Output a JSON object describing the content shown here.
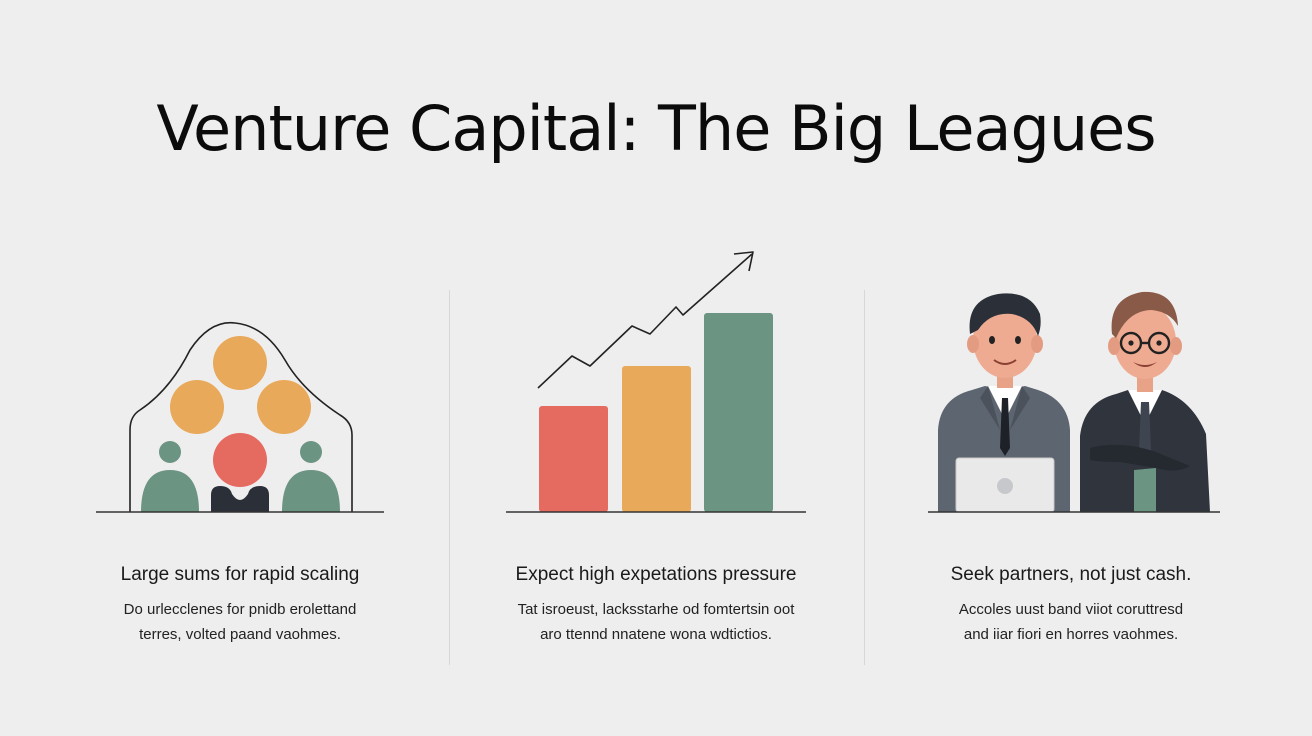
{
  "title": "Venture Capital: The Big Leagues",
  "columns": [
    {
      "icon": "investor-group-icon",
      "heading": "Large sums for rapid scaling",
      "body_lines": [
        "Do urlecclenes for pnidb erolettand",
        "terres, volted paand vaohmes."
      ]
    },
    {
      "icon": "growth-bar-chart-icon",
      "heading": "Expect high expetations pressure",
      "body_lines": [
        "Tat isroeust, lacksstarhe od fomtertsin oot",
        "aro ttennd nnatene wona wdtictios."
      ]
    },
    {
      "icon": "business-partners-icon",
      "heading": "Seek partners, not just cash.",
      "body_lines": [
        "Accoles uust band viiot coruttresd",
        "and iiar fiori en horres vaohmes."
      ]
    }
  ],
  "colors": {
    "background": "#efeeee",
    "orange": "#e8a95a",
    "red": "#e56a5f",
    "green": "#6b9483",
    "navy": "#2b3038",
    "suit_gray": "#5d6570",
    "suit_dark": "#2f343d"
  }
}
